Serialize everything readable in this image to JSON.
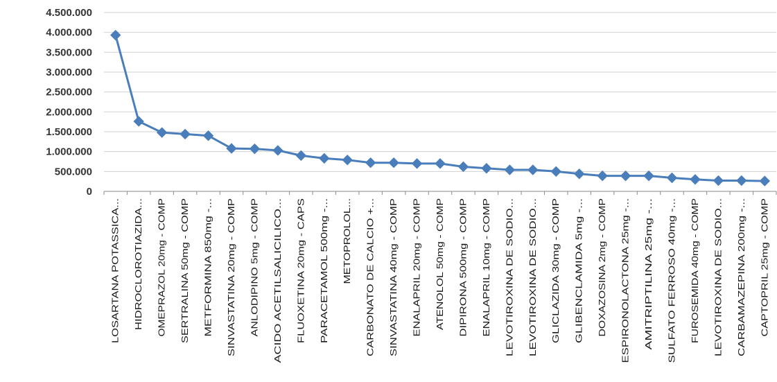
{
  "chart_data": {
    "type": "line",
    "title": "",
    "xlabel": "",
    "ylabel": "",
    "ylim": [
      0,
      4500000
    ],
    "yticks": [
      0,
      500000,
      1000000,
      1500000,
      2000000,
      2500000,
      3000000,
      3500000,
      4000000,
      4500000
    ],
    "ytick_labels": [
      "0",
      "500.000",
      "1.000.000",
      "1.500.000",
      "2.000.000",
      "2.500.000",
      "3.000.000",
      "3.500.000",
      "4.000.000",
      "4.500.000"
    ],
    "grid": true,
    "legend": "none",
    "line_color": "#4a7ebb",
    "categories": [
      "LOSARTANA POTASSICA...",
      "HIDROCLOROTIAZIDA...",
      "OMEPRAZOL 20mg - COMP",
      "SERTRALINA 50mg - COMP",
      "METFORMINA 850mg -...",
      "SINVASTATINA 20mg - COMP",
      "ANLODIPINO 5mg - COMP",
      "ACIDO ACETILSALICILICO...",
      "FLUOXETINA 20mg - CAPS",
      "PARACETAMOL 500mg -...",
      "METOPROLOL...",
      "CARBONATO DE CALCIO +...",
      "SINVASTATINA 40mg - COMP",
      "ENALAPRIL 20mg - COMP",
      "ATENOLOL 50mg - COMP",
      "DIPIRONA 500mg - COMP",
      "ENALAPRIL 10mg - COMP",
      "LEVOTIROXINA DE SODIO...",
      "LEVOTIROXINA DE SODIO...",
      "GLICLAZIDA 30mg - COMP",
      "GLIBENCLAMIDA 5mg -...",
      "DOXAZOSINA 2mg - COMP",
      "ESPIRONOLACTONA 25mg -...",
      "AMITRIPTILINA 25mg -...",
      "SULFATO FERROSO 40mg -...",
      "FUROSEMIDA 40mg - COMP",
      "LEVOTIROXINA DE SODIO...",
      "CARBAMAZEPINA 200mg -...",
      "CAPTOPRIL 25mg - COMP"
    ],
    "values": [
      3930000,
      1760000,
      1480000,
      1440000,
      1400000,
      1080000,
      1070000,
      1030000,
      900000,
      830000,
      790000,
      720000,
      720000,
      700000,
      700000,
      620000,
      580000,
      540000,
      540000,
      500000,
      440000,
      390000,
      390000,
      390000,
      340000,
      300000,
      270000,
      270000,
      260000
    ]
  }
}
